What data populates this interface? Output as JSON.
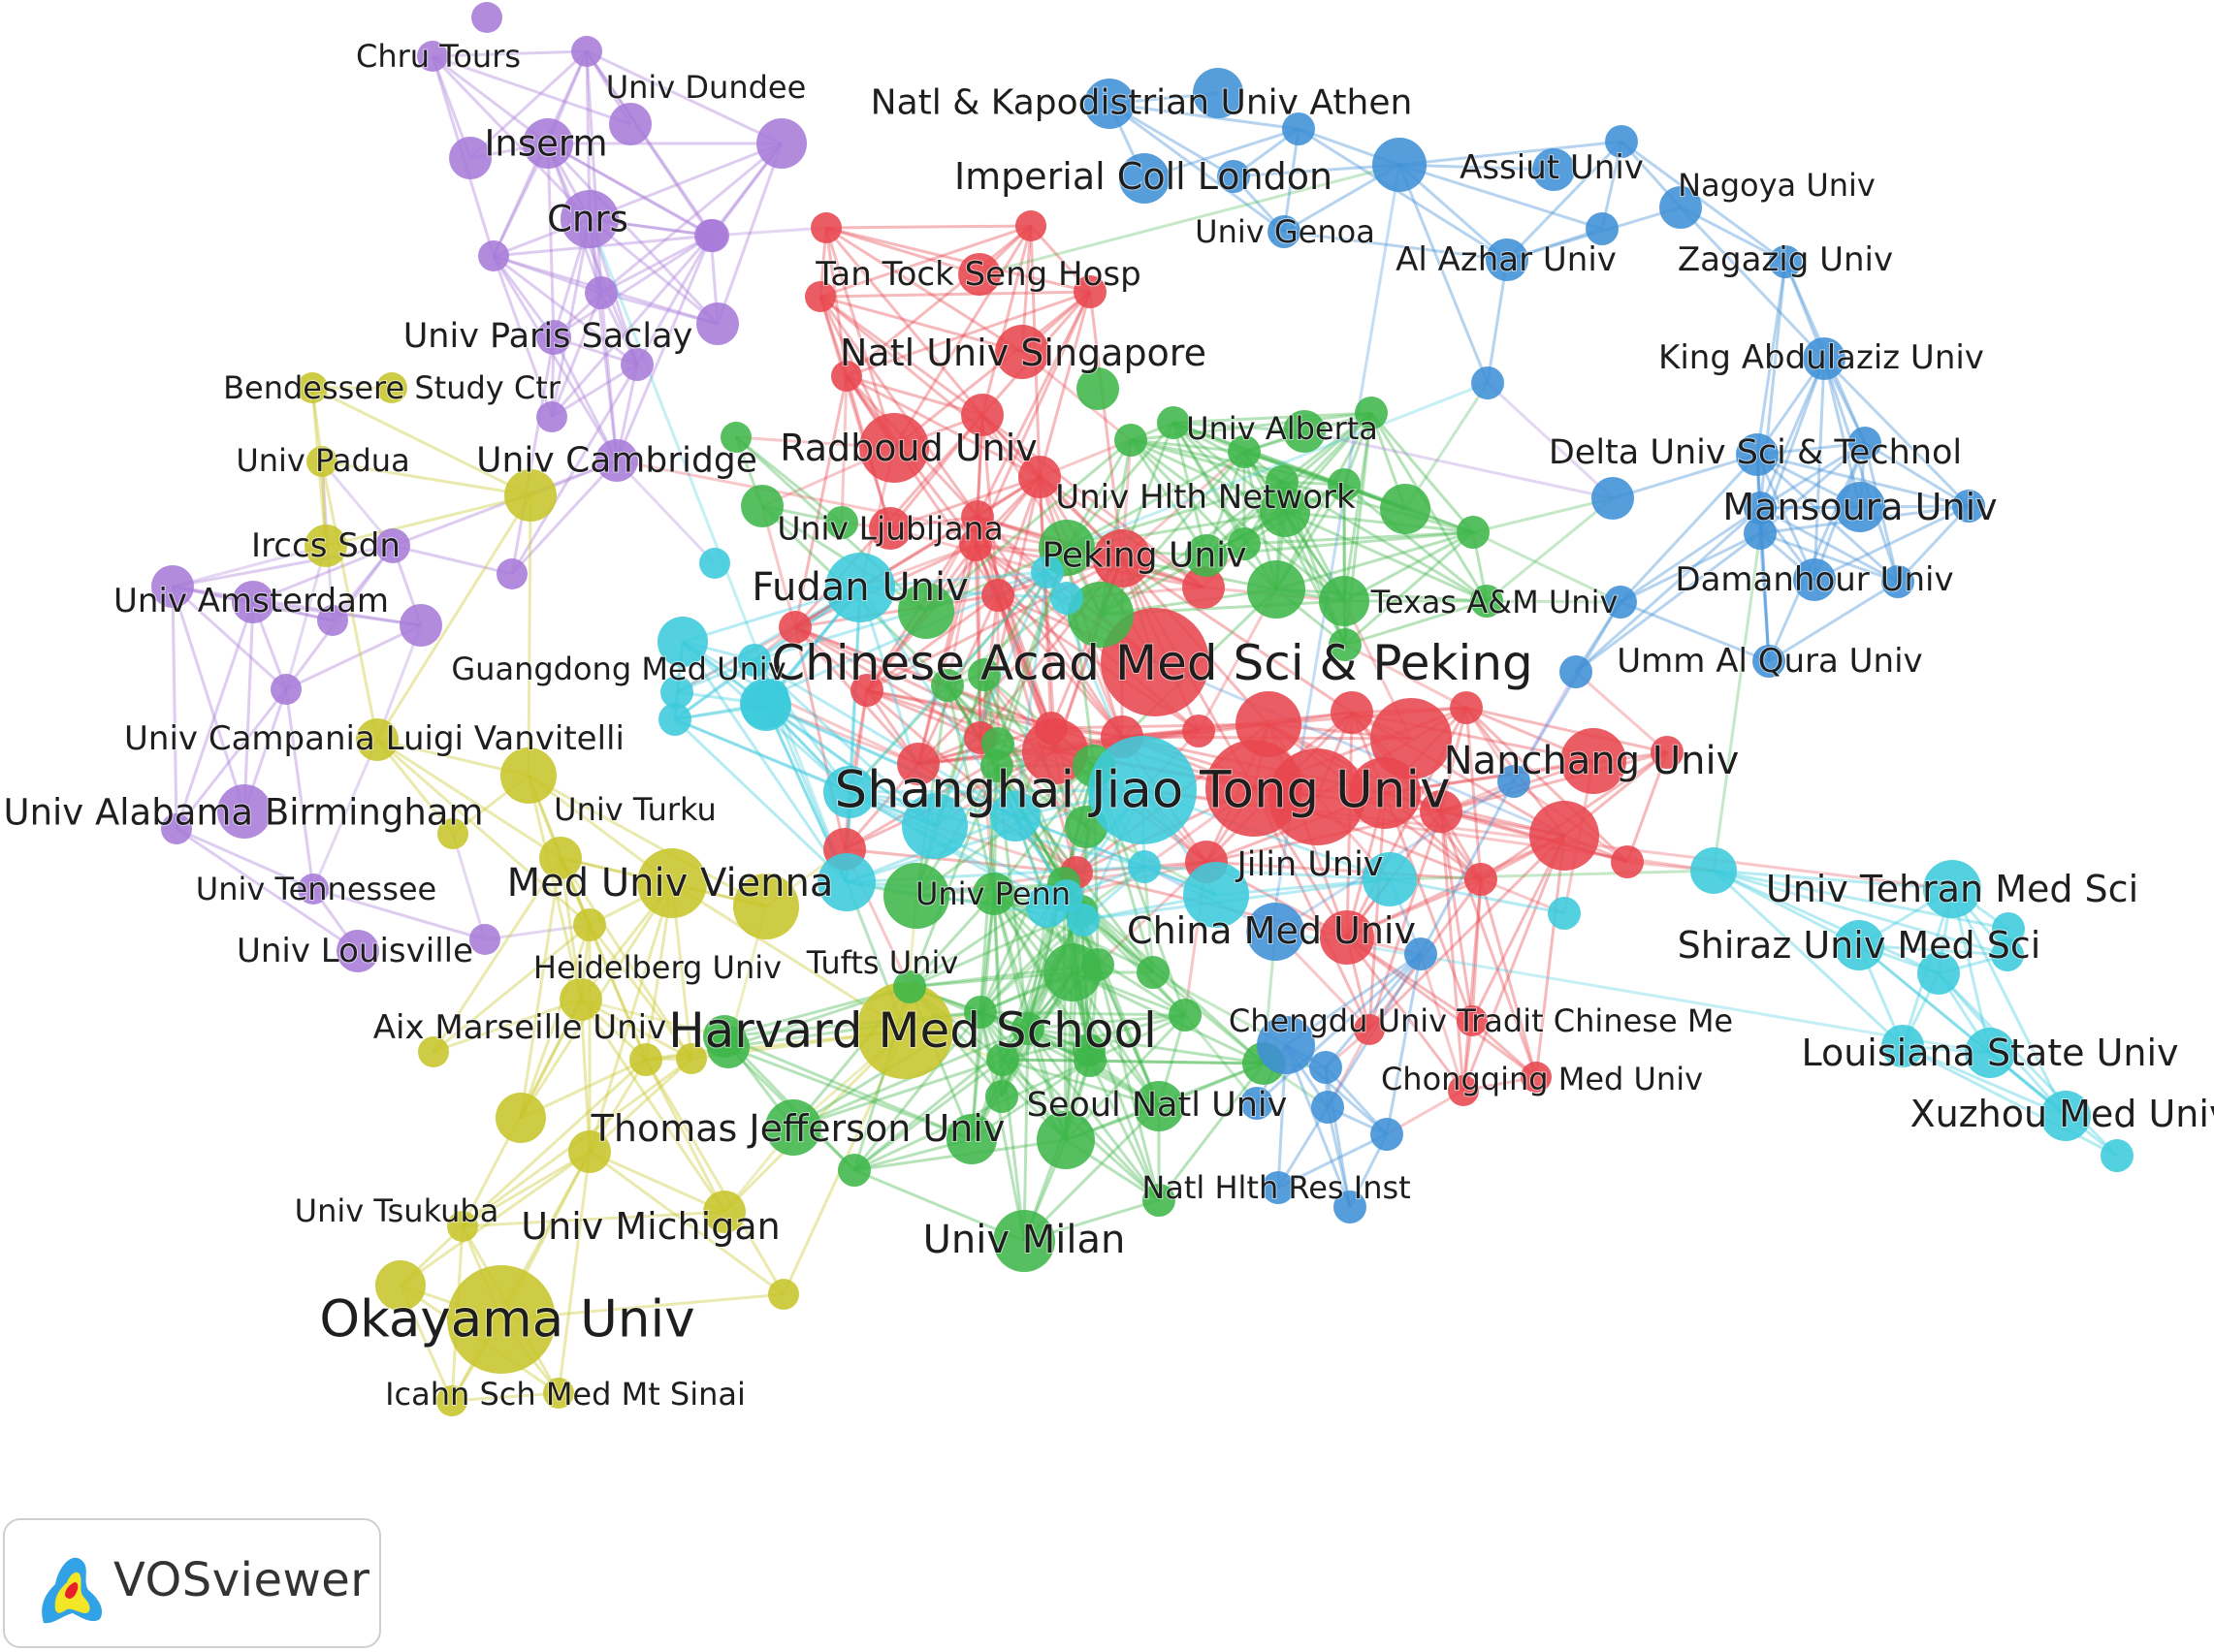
{
  "palette": {
    "purple": "#a77bd8",
    "yellow": "#c7c52a",
    "red": "#e8474f",
    "green": "#3fb64a",
    "blue": "#3f8fd6",
    "cyan": "#3ccbdc"
  },
  "branding": {
    "logo_icon": "vosviewer-logo-icon",
    "text": "VOSviewer"
  },
  "network": {
    "labels": [
      {
        "text": "Chru Tours",
        "c": "purple"
      },
      {
        "text": "Univ Dundee",
        "c": "purple"
      },
      {
        "text": "Inserm",
        "c": "purple"
      },
      {
        "text": "Cnrs",
        "c": "purple"
      },
      {
        "text": "Univ Paris Saclay",
        "c": "purple"
      },
      {
        "text": "Univ Cambridge",
        "c": "purple"
      },
      {
        "text": "Univ Amsterdam",
        "c": "purple"
      },
      {
        "text": "Univ Alabama Birmingham",
        "c": "purple"
      },
      {
        "text": "Univ Tennessee",
        "c": "purple"
      },
      {
        "text": "Univ Louisville",
        "c": "purple"
      },
      {
        "text": "Bendessere Study Ctr",
        "c": "yellow"
      },
      {
        "text": "Univ Padua",
        "c": "yellow"
      },
      {
        "text": "Irccs Sdn",
        "c": "yellow"
      },
      {
        "text": "Univ Campania Luigi Vanvitelli",
        "c": "yellow"
      },
      {
        "text": "Univ Turku",
        "c": "yellow"
      },
      {
        "text": "Med Univ Vienna",
        "c": "yellow"
      },
      {
        "text": "Heidelberg Univ",
        "c": "yellow"
      },
      {
        "text": "Aix Marseille Univ",
        "c": "yellow"
      },
      {
        "text": "Harvard Med School",
        "c": "yellow"
      },
      {
        "text": "Univ Tsukuba",
        "c": "yellow"
      },
      {
        "text": "Univ Michigan",
        "c": "yellow"
      },
      {
        "text": "Okayama Univ",
        "c": "yellow"
      },
      {
        "text": "Icahn Sch Med Mt Sinai",
        "c": "yellow"
      },
      {
        "text": "Tan Tock Seng Hosp",
        "c": "red"
      },
      {
        "text": "Natl Univ Singapore",
        "c": "red"
      },
      {
        "text": "Radboud Univ",
        "c": "red"
      },
      {
        "text": "Univ Ljubljana",
        "c": "red"
      },
      {
        "text": "Chinese Acad Med Sci & Peking",
        "c": "red"
      },
      {
        "text": "Nanchang Univ",
        "c": "red"
      },
      {
        "text": "Jilin Univ",
        "c": "red"
      },
      {
        "text": "Chongqing Med Univ",
        "c": "red"
      },
      {
        "text": "Univ Alberta",
        "c": "green"
      },
      {
        "text": "Univ Hlth Network",
        "c": "green"
      },
      {
        "text": "Peking Univ",
        "c": "green"
      },
      {
        "text": "Texas A&M Univ",
        "c": "green"
      },
      {
        "text": "Univ Penn",
        "c": "green"
      },
      {
        "text": "Tufts Univ",
        "c": "green"
      },
      {
        "text": "Thomas Jefferson Univ",
        "c": "green"
      },
      {
        "text": "Seoul Natl Univ",
        "c": "green"
      },
      {
        "text": "Univ Milan",
        "c": "green"
      },
      {
        "text": "Natl & Kapodistrian Univ Athen",
        "c": "blue"
      },
      {
        "text": "Imperial Coll London",
        "c": "blue"
      },
      {
        "text": "Univ Genoa",
        "c": "blue"
      },
      {
        "text": "Assiut Univ",
        "c": "blue"
      },
      {
        "text": "Nagoya Univ",
        "c": "blue"
      },
      {
        "text": "Al Azhar Univ",
        "c": "blue"
      },
      {
        "text": "Zagazig Univ",
        "c": "blue"
      },
      {
        "text": "King Abdulaziz Univ",
        "c": "blue"
      },
      {
        "text": "Delta Univ Sci & Technol",
        "c": "blue"
      },
      {
        "text": "Mansoura Univ",
        "c": "blue"
      },
      {
        "text": "Damanhour Univ",
        "c": "blue"
      },
      {
        "text": "Umm Al Qura Univ",
        "c": "blue"
      },
      {
        "text": "China Med Univ",
        "c": "blue"
      },
      {
        "text": "Chengdu Univ Tradit Chinese Me",
        "c": "blue"
      },
      {
        "text": "Natl Hlth Res Inst",
        "c": "blue"
      },
      {
        "text": "Fudan Univ",
        "c": "cyan"
      },
      {
        "text": "Guangdong Med Univ",
        "c": "cyan"
      },
      {
        "text": "Shanghai Jiao Tong Univ",
        "c": "cyan"
      },
      {
        "text": "Univ Tehran Med Sci",
        "c": "cyan"
      },
      {
        "text": "Shiraz Univ Med Sci",
        "c": "cyan"
      },
      {
        "text": "Louisiana State Univ",
        "c": "cyan"
      },
      {
        "text": "Xuzhou Med Univ",
        "c": "cyan"
      }
    ]
  }
}
